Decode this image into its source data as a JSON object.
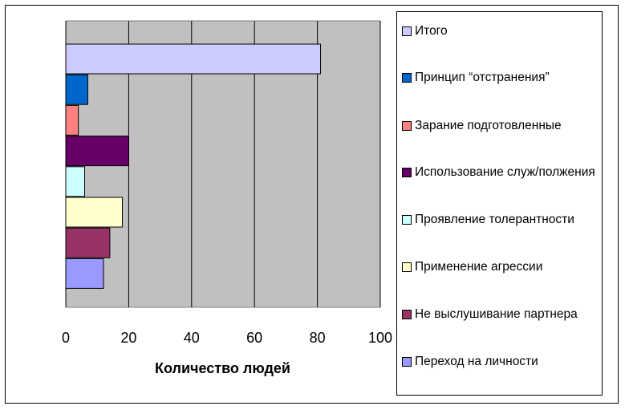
{
  "chart_data": {
    "type": "bar",
    "orientation": "horizontal",
    "categories": [
      "Итого",
      "Принцип “отстранения”",
      "Зарание подготовленные",
      "Использование служ/полжения",
      "Проявление толерантности",
      "Применение агрессии",
      "Не выслушивание партнера",
      "Переход на личности"
    ],
    "values": [
      81,
      7,
      4,
      20,
      6,
      18,
      14,
      12
    ],
    "colors": [
      "#ccccff",
      "#0066cc",
      "#ff8080",
      "#660066",
      "#ccffff",
      "#ffffcc",
      "#993366",
      "#9999ff"
    ],
    "xlim": [
      0,
      100
    ],
    "xticks": [
      "0",
      "20",
      "40",
      "60",
      "80",
      "100"
    ],
    "xlabel": "Количество людей",
    "ylabel": "",
    "title": "",
    "plot_background": "#c0c0c0",
    "grid": "vertical",
    "legend_position": "right"
  }
}
